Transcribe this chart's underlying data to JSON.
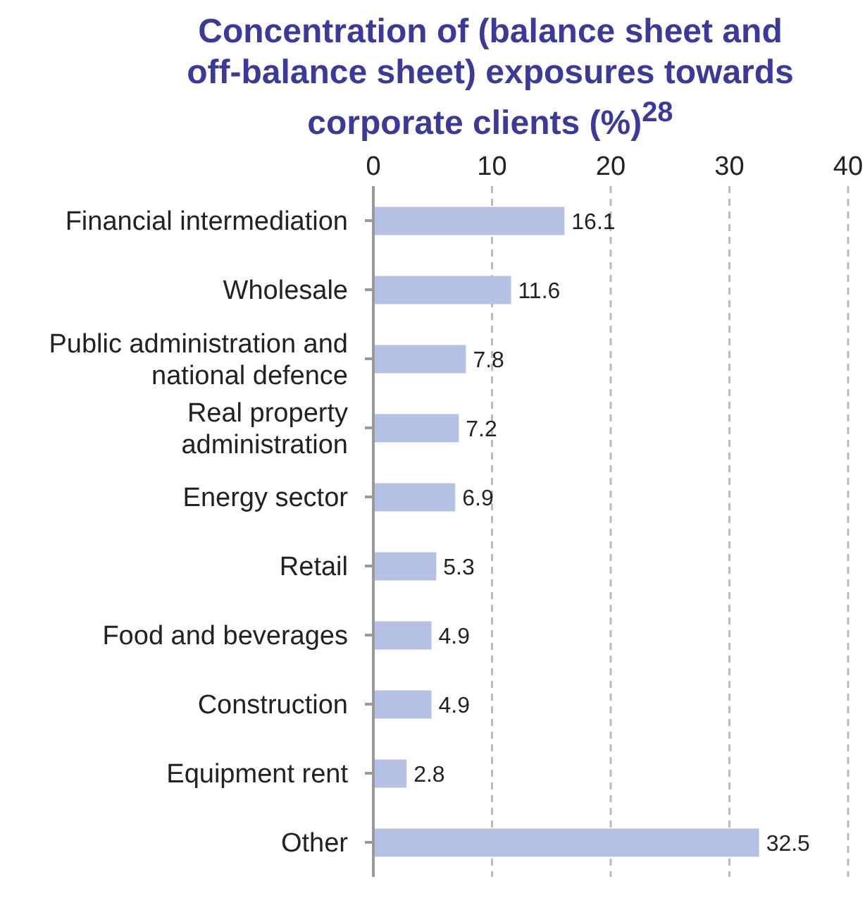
{
  "chart_data": {
    "type": "bar",
    "orientation": "horizontal",
    "title": "Concentration of (balance sheet and off-balance sheet) exposures towards corporate clients (%)$^{28}$",
    "categories": [
      "Financial intermediation",
      "Wholesale",
      "Public administration and national defence",
      "Real property administration",
      "Energy sector",
      "Retail",
      "Food and beverages",
      "Construction",
      "Equipment rent",
      "Other"
    ],
    "values": [
      16.1,
      11.6,
      7.8,
      7.2,
      6.9,
      5.3,
      4.9,
      4.9,
      2.8,
      32.5
    ],
    "color": "#b4c1e4",
    "xlim": [
      0,
      40
    ],
    "xticks": [
      0,
      10,
      20,
      30,
      40
    ],
    "grid": "x",
    "data_labels": true
  }
}
